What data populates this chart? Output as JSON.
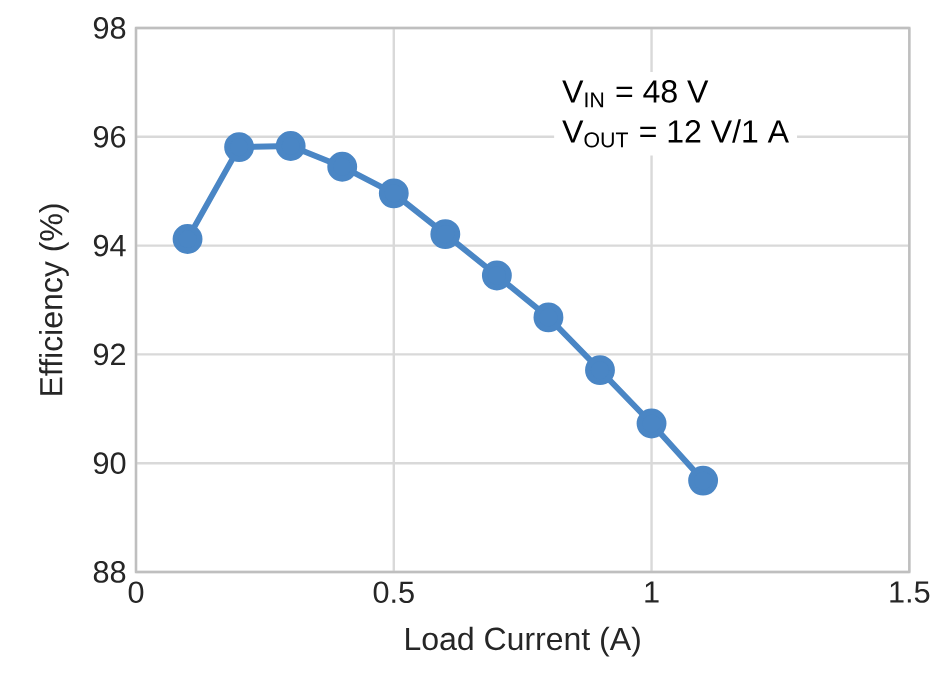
{
  "chart_data": {
    "type": "line",
    "xlabel": "Load Current (A)",
    "ylabel": "Efficiency (%)",
    "x": [
      0.1,
      0.2,
      0.3,
      0.4,
      0.5,
      0.6,
      0.7,
      0.8,
      0.9,
      1.0,
      1.1
    ],
    "series": [
      {
        "color": "#4a86c5",
        "values": [
          94.12,
          95.81,
          95.83,
          95.45,
          94.96,
          94.21,
          93.45,
          92.68,
          91.71,
          90.73,
          89.68
        ]
      }
    ],
    "xlim": [
      0,
      1.5
    ],
    "ylim": [
      88,
      98
    ],
    "xticks": [
      0,
      0.5,
      1,
      1.5
    ],
    "yticks": [
      88,
      90,
      92,
      94,
      96,
      98
    ],
    "grid": true,
    "marker": "circle",
    "line_style": "solid",
    "annotations": [
      "V$_{IN}$ = 48 V",
      "V$_{OUT}$ = 12 V/1 A"
    ]
  }
}
